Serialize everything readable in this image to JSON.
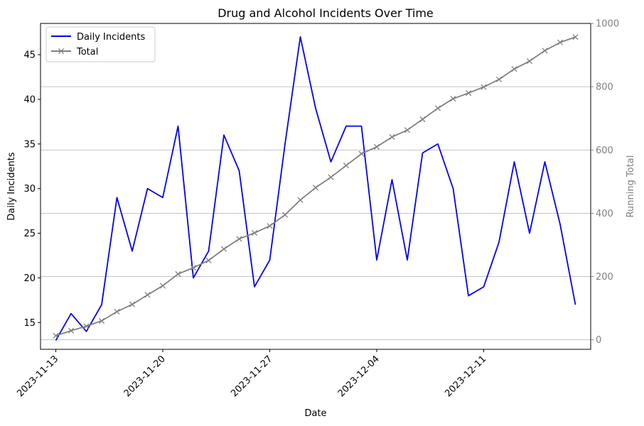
{
  "chart_data": {
    "type": "line",
    "title": "Drug and Alcohol Incidents Over Time",
    "xlabel": "Date",
    "ylabel": "Daily Incidents",
    "y2label": "Running Total",
    "x": [
      "2023-11-13",
      "2023-11-14",
      "2023-11-15",
      "2023-11-16",
      "2023-11-17",
      "2023-11-18",
      "2023-11-19",
      "2023-11-20",
      "2023-11-21",
      "2023-11-22",
      "2023-11-23",
      "2023-11-24",
      "2023-11-25",
      "2023-11-26",
      "2023-11-27",
      "2023-11-28",
      "2023-11-29",
      "2023-11-30",
      "2023-12-01",
      "2023-12-02",
      "2023-12-03",
      "2023-12-04",
      "2023-12-05",
      "2023-12-06",
      "2023-12-07",
      "2023-12-08",
      "2023-12-09",
      "2023-12-10",
      "2023-12-11",
      "2023-12-12",
      "2023-12-13",
      "2023-12-14",
      "2023-12-15",
      "2023-12-16",
      "2023-12-17"
    ],
    "x_ticks": [
      "2023-11-13",
      "2023-11-20",
      "2023-11-27",
      "2023-12-04",
      "2023-12-11"
    ],
    "xlim": [
      "2023-11-12",
      "2023-12-18"
    ],
    "series": [
      {
        "name": "Daily Incidents",
        "axis": "left",
        "color": "#0000ff",
        "marker": "none",
        "values": [
          13,
          16,
          14,
          17,
          29,
          23,
          30,
          29,
          37,
          20,
          23,
          36,
          32,
          19,
          22,
          35,
          47,
          39,
          33,
          37,
          37,
          22,
          31,
          22,
          34,
          35,
          30,
          18,
          19,
          24,
          33,
          25,
          33,
          26,
          17
        ]
      },
      {
        "name": "Total",
        "axis": "right",
        "color": "#808080",
        "marker": "x",
        "values": [
          13,
          29,
          43,
          60,
          89,
          112,
          142,
          171,
          208,
          228,
          251,
          287,
          319,
          338,
          360,
          395,
          442,
          481,
          514,
          551,
          588,
          610,
          641,
          663,
          697,
          732,
          762,
          780,
          799,
          823,
          856,
          881,
          914,
          940,
          957
        ]
      }
    ],
    "ylim": [
      12,
      48.5
    ],
    "y_ticks": [
      15,
      20,
      25,
      30,
      35,
      40,
      45
    ],
    "y2lim": [
      -30,
      1000
    ],
    "y2_ticks": [
      0,
      200,
      400,
      600,
      800,
      1000
    ],
    "grid": "horizontal lines at right-axis ticks",
    "legend": "top-left"
  }
}
